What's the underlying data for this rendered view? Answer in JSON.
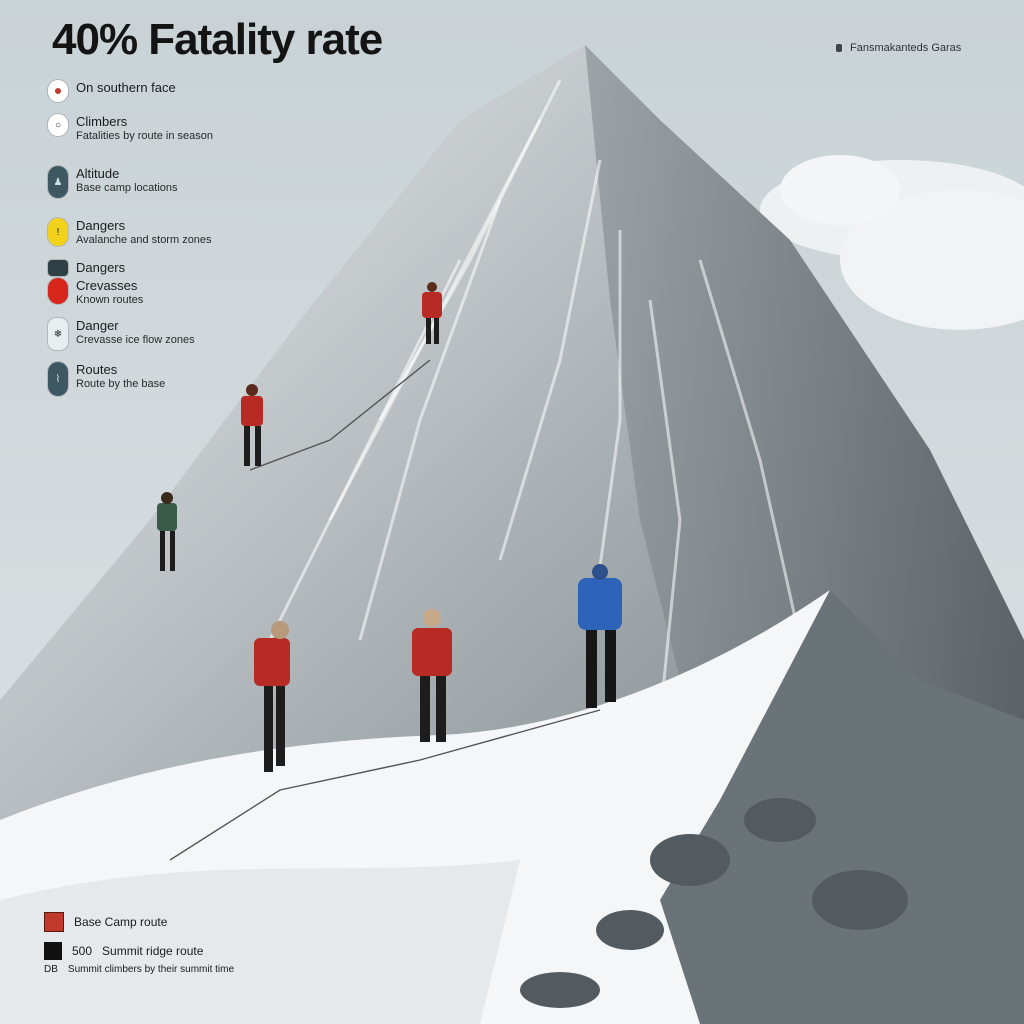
{
  "header": {
    "title": "40% Fatality rate",
    "top_right_label": "Fansmakanteds Garas"
  },
  "legend": {
    "items": [
      {
        "title": "On southern face",
        "subtitle": "",
        "icon": "red-dot-icon",
        "color": "#ffffff",
        "accent": "#c0392b"
      },
      {
        "title": "Climbers",
        "subtitle": "Fatalities by route in season",
        "icon": "circle-icon",
        "color": "#ffffff",
        "accent": "#888888"
      },
      {
        "title": "Altitude",
        "subtitle": "Base camp locations",
        "icon": "climber-icon",
        "color": "#3d5862",
        "accent": "#cfe0e6"
      },
      {
        "title": "Dangers",
        "subtitle": "Avalanche and storm zones",
        "icon": "warning-icon",
        "color": "#f2d21b",
        "accent": "#6b5200"
      },
      {
        "title": "Dangers",
        "subtitle": "",
        "icon": "square-icon",
        "color": "#2f3f46",
        "accent": "#2f3f46"
      },
      {
        "title": "Crevasses",
        "subtitle": "Known routes",
        "icon": "danger-dot-icon",
        "color": "#d8261d",
        "accent": "#d8261d"
      },
      {
        "title": "Danger",
        "subtitle": "Crevasse ice flow zones",
        "icon": "ice-icon",
        "color": "#e8eef0",
        "accent": "#6b7d85"
      },
      {
        "title": "Routes",
        "subtitle": "Route by the base",
        "icon": "route-icon",
        "color": "#3d5862",
        "accent": "#cfe0e6"
      }
    ]
  },
  "bottom_legend": {
    "items": [
      {
        "label": "Base Camp route",
        "color": "#c0392b"
      },
      {
        "label": "Summit ridge route",
        "prefix": "500",
        "color": "#111111"
      },
      {
        "label": "Summit climbers by their summit time",
        "prefix": "DB",
        "color": "#ffffff"
      }
    ]
  },
  "colors": {
    "sky": "#d3dadd",
    "snow": "#f4f5f6",
    "rock": "#8e969b",
    "shadow": "#5c6469",
    "jacket_red": "#b82a24",
    "jacket_blue": "#2d63b8"
  }
}
